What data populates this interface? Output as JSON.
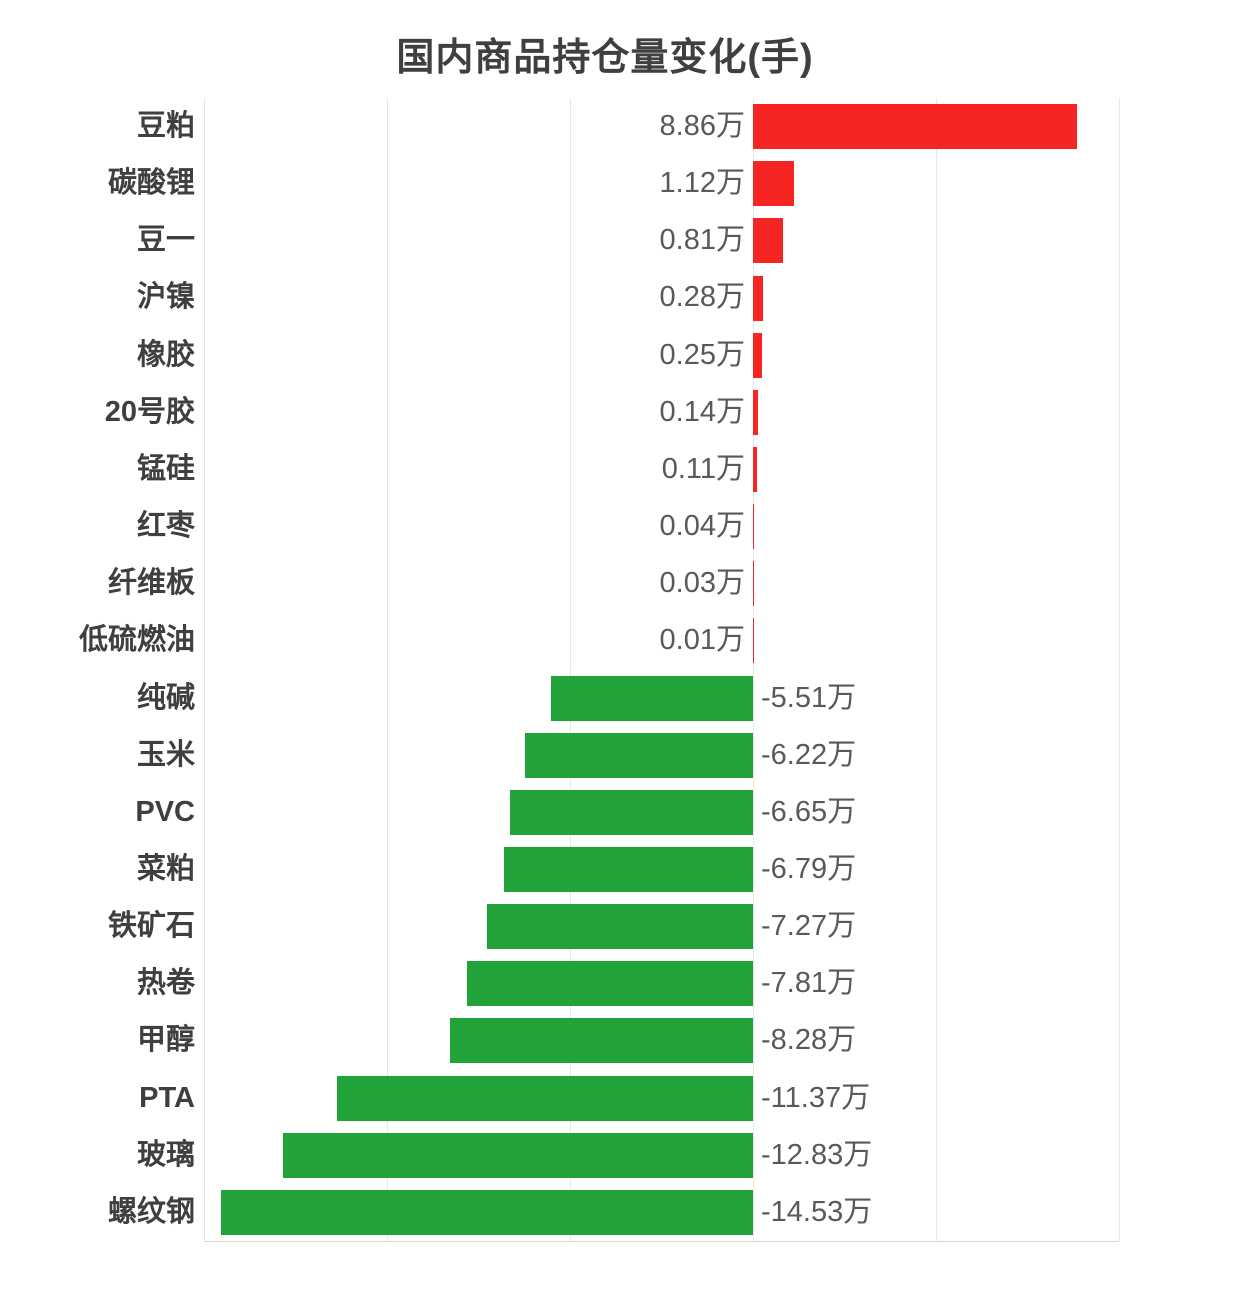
{
  "chart_data": {
    "type": "bar",
    "orientation": "horizontal",
    "title": "国内商品持仓量变化(手)",
    "unit": "万",
    "categories": [
      "豆粕",
      "碳酸锂",
      "豆一",
      "沪镍",
      "橡胶",
      "20号胶",
      "锰硅",
      "红枣",
      "纤维板",
      "低硫燃油",
      "纯碱",
      "玉米",
      "PVC",
      "菜粕",
      "铁矿石",
      "热卷",
      "甲醇",
      "PTA",
      "玻璃",
      "螺纹钢"
    ],
    "values": [
      8.86,
      1.12,
      0.81,
      0.28,
      0.25,
      0.14,
      0.11,
      0.04,
      0.03,
      0.01,
      -5.51,
      -6.22,
      -6.65,
      -6.79,
      -7.27,
      -7.81,
      -8.28,
      -11.37,
      -12.83,
      -14.53
    ],
    "value_labels": [
      "8.86万",
      "1.12万",
      "0.81万",
      "0.28万",
      "0.25万",
      "0.14万",
      "0.11万",
      "0.04万",
      "0.03万",
      "0.01万",
      "-5.51万",
      "-6.22万",
      "-6.65万",
      "-6.79万",
      "-7.27万",
      "-7.81万",
      "-8.28万",
      "-11.37万",
      "-12.83万",
      "-14.53万"
    ],
    "xlim": [
      -15,
      10
    ],
    "grid_interval": 5,
    "grid_on": true,
    "legend": null,
    "xlabel": "",
    "ylabel": "",
    "colors": {
      "positive": "#f62521",
      "negative": "#22a339",
      "grid": "#e7e7e7",
      "axis": "#d4d4d4",
      "category_label": "#3f3f3f",
      "value_label": "#595959",
      "title": "#3f3f3f",
      "background": "#ffffff"
    }
  }
}
